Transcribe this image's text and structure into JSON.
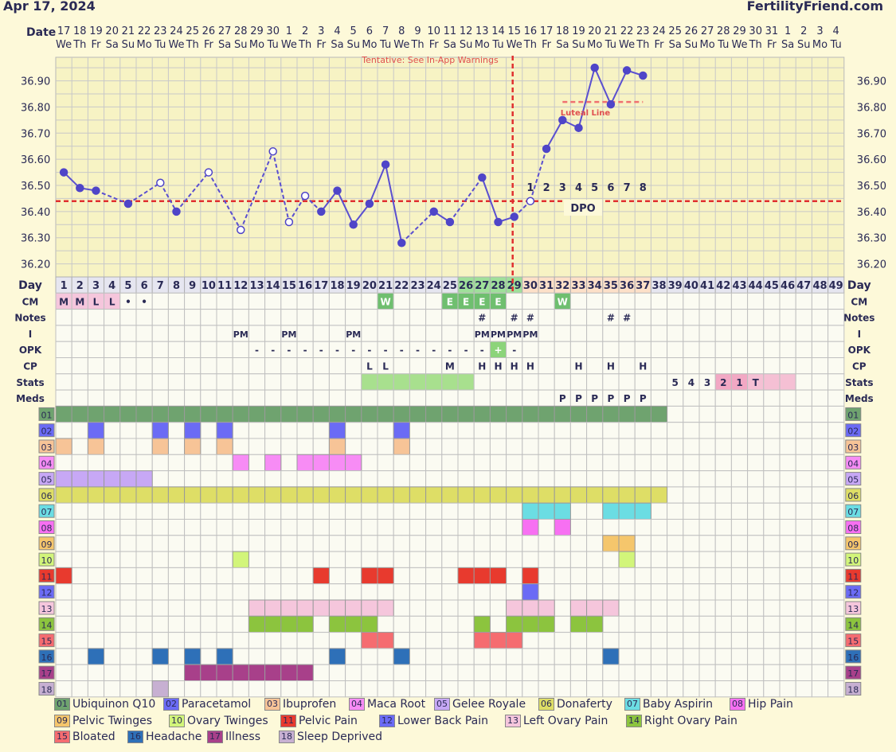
{
  "header": {
    "date": "Apr 17, 2024",
    "brand": "FertilityFriend.com"
  },
  "labels": {
    "date": "Date",
    "day": "Day",
    "tentative": "Tentative: See In-App Warnings",
    "luteal": "Luteal Line",
    "dpo": "DPO"
  },
  "dates": [
    "17",
    "18",
    "19",
    "20",
    "21",
    "22",
    "23",
    "24",
    "25",
    "26",
    "27",
    "28",
    "29",
    "30",
    "1",
    "2",
    "3",
    "4",
    "5",
    "6",
    "7",
    "8",
    "9",
    "10",
    "11",
    "12",
    "13",
    "14",
    "15",
    "16",
    "17",
    "18",
    "19",
    "20",
    "21",
    "22",
    "23",
    "24",
    "25",
    "26",
    "27",
    "28",
    "29",
    "30",
    "31",
    "1",
    "2",
    "3",
    "4"
  ],
  "weekdays": [
    "We",
    "Th",
    "Fr",
    "Sa",
    "Su",
    "Mo",
    "Tu",
    "We",
    "Th",
    "Fr",
    "Sa",
    "Su",
    "Mo",
    "Tu",
    "We",
    "Th",
    "Fr",
    "Sa",
    "Su",
    "Mo",
    "Tu",
    "We",
    "Th",
    "Fr",
    "Sa",
    "Su",
    "Mo",
    "Tu",
    "We",
    "Th",
    "Fr",
    "Sa",
    "Su",
    "Mo",
    "Tu",
    "We",
    "Th",
    "Fr",
    "Sa",
    "Su",
    "Mo",
    "Tu",
    "We",
    "Th",
    "Fr",
    "Sa",
    "Su",
    "Mo",
    "Tu"
  ],
  "chart_data": {
    "type": "line",
    "title": "",
    "ylabel": "",
    "xlabel": "Day",
    "ylim": [
      36.15,
      36.99
    ],
    "yticks": [
      "36.90",
      "36.80",
      "36.70",
      "36.60",
      "36.50",
      "36.40",
      "36.30",
      "36.20"
    ],
    "ytick_values": [
      36.9,
      36.8,
      36.7,
      36.6,
      36.5,
      36.4,
      36.3,
      36.2
    ],
    "cycle_days": 49,
    "temps": [
      {
        "day": 1,
        "t": 36.55,
        "f": 1
      },
      {
        "day": 2,
        "t": 36.49,
        "f": 1
      },
      {
        "day": 3,
        "t": 36.48,
        "f": 1
      },
      {
        "day": 5,
        "t": 36.43,
        "f": 1
      },
      {
        "day": 7,
        "t": 36.51,
        "f": 0
      },
      {
        "day": 8,
        "t": 36.4,
        "f": 1
      },
      {
        "day": 10,
        "t": 36.55,
        "f": 0
      },
      {
        "day": 12,
        "t": 36.33,
        "f": 0
      },
      {
        "day": 14,
        "t": 36.63,
        "f": 0
      },
      {
        "day": 15,
        "t": 36.36,
        "f": 0
      },
      {
        "day": 16,
        "t": 36.46,
        "f": 0
      },
      {
        "day": 17,
        "t": 36.4,
        "f": 1
      },
      {
        "day": 18,
        "t": 36.48,
        "f": 1
      },
      {
        "day": 19,
        "t": 36.35,
        "f": 1
      },
      {
        "day": 20,
        "t": 36.43,
        "f": 1
      },
      {
        "day": 21,
        "t": 36.58,
        "f": 1
      },
      {
        "day": 22,
        "t": 36.28,
        "f": 1
      },
      {
        "day": 24,
        "t": 36.4,
        "f": 1
      },
      {
        "day": 25,
        "t": 36.36,
        "f": 1
      },
      {
        "day": 27,
        "t": 36.53,
        "f": 1
      },
      {
        "day": 28,
        "t": 36.36,
        "f": 1
      },
      {
        "day": 29,
        "t": 36.38,
        "f": 1
      },
      {
        "day": 30,
        "t": 36.44,
        "f": 0
      },
      {
        "day": 31,
        "t": 36.64,
        "f": 1
      },
      {
        "day": 32,
        "t": 36.75,
        "f": 1
      },
      {
        "day": 33,
        "t": 36.72,
        "f": 1
      },
      {
        "day": 34,
        "t": 36.95,
        "f": 1
      },
      {
        "day": 35,
        "t": 36.81,
        "f": 1
      },
      {
        "day": 36,
        "t": 36.94,
        "f": 1
      },
      {
        "day": 37,
        "t": 36.92,
        "f": 1
      }
    ],
    "coverline": 36.44,
    "ovulation_day": 29,
    "luteal_line": {
      "value": 36.81,
      "from_day": 32,
      "to_day": 37
    },
    "dpo": [
      "1",
      "2",
      "3",
      "4",
      "5",
      "6",
      "7",
      "8"
    ],
    "dpo_start_day": 30
  },
  "info_rows": [
    {
      "label": "CM",
      "cells": {
        "1": "M",
        "2": "M",
        "3": "L",
        "4": "L",
        "5": "•",
        "6": "•",
        "21": "W",
        "25": "E",
        "26": "E",
        "27": "E",
        "28": "E",
        "32": "W"
      }
    },
    {
      "label": "Notes",
      "cells": {
        "27": "#",
        "29": "#",
        "30": "#",
        "35": "#",
        "36": "#"
      }
    },
    {
      "label": "I",
      "cells": {
        "12": "PM",
        "15": "PM",
        "19": "PM",
        "27": "PM",
        "28": "PM",
        "29": "PM",
        "30": "PM"
      }
    },
    {
      "label": "OPK",
      "cells": {
        "13": "-",
        "14": "-",
        "15": "-",
        "16": "-",
        "17": "-",
        "18": "-",
        "19": "-",
        "20": "-",
        "21": "-",
        "22": "-",
        "23": "-",
        "24": "-",
        "25": "-",
        "26": "-",
        "27": "-",
        "28": "+",
        "29": "-"
      }
    },
    {
      "label": "CP",
      "cells": {
        "20": "L",
        "21": "L",
        "25": "M",
        "27": "H",
        "28": "H",
        "29": "H",
        "30": "H",
        "33": "H",
        "35": "H",
        "37": "H"
      }
    },
    {
      "label": "Stats",
      "cells": {
        "39": "5",
        "40": "4",
        "41": "3",
        "42": "2",
        "43": "1",
        "44": "T"
      }
    },
    {
      "label": "Meds",
      "cells": {
        "32": "P",
        "33": "P",
        "34": "P",
        "35": "P",
        "36": "P",
        "37": "P"
      }
    }
  ],
  "legend": [
    {
      "code": "01",
      "label": "Ubiquinon Q10",
      "color": "#6fa36f"
    },
    {
      "code": "02",
      "label": "Paracetamol",
      "color": "#6b6bf5"
    },
    {
      "code": "03",
      "label": "Ibuprofen",
      "color": "#f7c497"
    },
    {
      "code": "04",
      "label": "Maca Root",
      "color": "#f78cf5"
    },
    {
      "code": "05",
      "label": "Gelee Royale",
      "color": "#c7a8f5"
    },
    {
      "code": "06",
      "label": "Donaferty",
      "color": "#dede66"
    },
    {
      "code": "07",
      "label": "Baby Aspirin",
      "color": "#6bdde3"
    },
    {
      "code": "08",
      "label": "Hip Pain",
      "color": "#f770f2"
    },
    {
      "code": "09",
      "label": "Pelvic Twinges",
      "color": "#f5c66c"
    },
    {
      "code": "10",
      "label": "Ovary Twinges",
      "color": "#d2f57a"
    },
    {
      "code": "11",
      "label": "Pelvic Pain",
      "color": "#e83a2e"
    },
    {
      "code": "12",
      "label": "Lower Back Pain",
      "color": "#6b6bf5"
    },
    {
      "code": "13",
      "label": "Left Ovary Pain",
      "color": "#f5c6dc"
    },
    {
      "code": "14",
      "label": "Right Ovary Pain",
      "color": "#8cc43e"
    },
    {
      "code": "15",
      "label": "Bloated",
      "color": "#f56c70"
    },
    {
      "code": "16",
      "label": "Headache",
      "color": "#2e70b8"
    },
    {
      "code": "17",
      "label": "Illness",
      "color": "#a8408a"
    },
    {
      "code": "18",
      "label": "Sleep Deprived",
      "color": "#c7b0d2"
    }
  ],
  "symptom_rows": [
    [
      [
        1,
        38
      ]
    ],
    [
      [
        3,
        3
      ],
      [
        7,
        7
      ],
      [
        9,
        9
      ],
      [
        11,
        11
      ],
      [
        18,
        18
      ],
      [
        22,
        22
      ]
    ],
    [
      [
        1,
        1
      ],
      [
        3,
        3
      ],
      [
        7,
        7
      ],
      [
        9,
        9
      ],
      [
        11,
        11
      ],
      [
        18,
        18
      ],
      [
        22,
        22
      ]
    ],
    [
      [
        12,
        12
      ],
      [
        14,
        14
      ],
      [
        16,
        19
      ]
    ],
    [
      [
        1,
        6
      ]
    ],
    [
      [
        1,
        38
      ]
    ],
    [
      [
        30,
        32
      ],
      [
        35,
        37
      ]
    ],
    [
      [
        30,
        30
      ],
      [
        32,
        32
      ]
    ],
    [
      [
        35,
        36
      ]
    ],
    [
      [
        12,
        12
      ],
      [
        36,
        36
      ]
    ],
    [
      [
        1,
        1
      ],
      [
        17,
        17
      ],
      [
        20,
        21
      ],
      [
        26,
        28
      ],
      [
        30,
        30
      ]
    ],
    [
      [
        30,
        30
      ]
    ],
    [
      [
        13,
        21
      ],
      [
        29,
        31
      ],
      [
        33,
        35
      ]
    ],
    [
      [
        13,
        16
      ],
      [
        18,
        20
      ],
      [
        27,
        27
      ],
      [
        29,
        31
      ],
      [
        33,
        34
      ]
    ],
    [
      [
        20,
        21
      ],
      [
        27,
        29
      ]
    ],
    [
      [
        3,
        3
      ],
      [
        7,
        7
      ],
      [
        9,
        9
      ],
      [
        11,
        11
      ],
      [
        18,
        18
      ],
      [
        22,
        22
      ],
      [
        35,
        35
      ]
    ],
    [
      [
        9,
        16
      ]
    ],
    [
      [
        7,
        7
      ]
    ]
  ]
}
